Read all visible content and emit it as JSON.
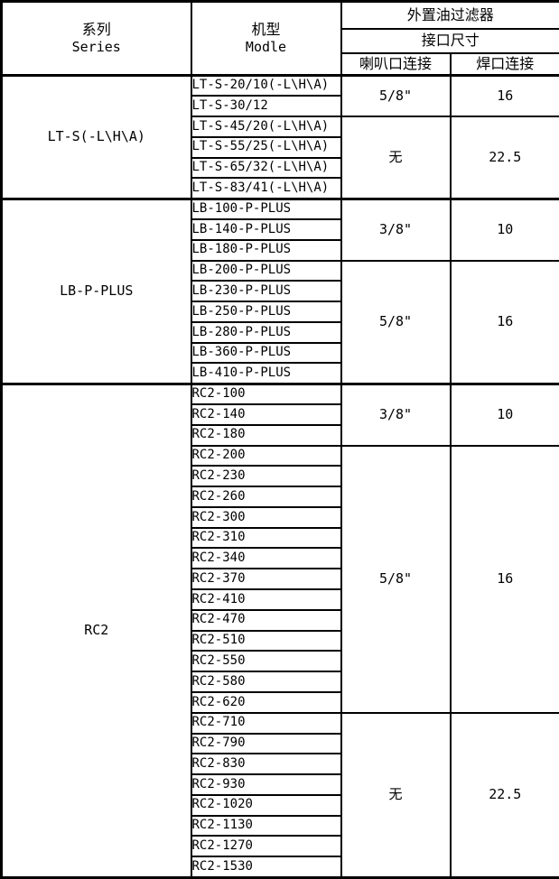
{
  "table": {
    "header": {
      "series_zh": "系列",
      "series_en": "Series",
      "model_zh": "机型",
      "model_en": "Modle",
      "filter_title": "外置油过滤器",
      "size_title": "接口尺寸",
      "flare_label": "喇叭口连接",
      "weld_label": "焊口连接"
    },
    "sections": [
      {
        "series": "LT-S(-L\\H\\A)",
        "groups": [
          {
            "flare": "5/8\"",
            "weld": "16",
            "models": [
              "LT-S-20/10(-L\\H\\A)",
              "LT-S-30/12"
            ]
          },
          {
            "flare": "无",
            "weld": "22.5",
            "models": [
              "LT-S-45/20(-L\\H\\A)",
              "LT-S-55/25(-L\\H\\A)",
              "LT-S-65/32(-L\\H\\A)",
              "LT-S-83/41(-L\\H\\A)"
            ]
          }
        ]
      },
      {
        "series": "LB-P-PLUS",
        "groups": [
          {
            "flare": "3/8\"",
            "weld": "10",
            "models": [
              "LB-100-P-PLUS",
              "LB-140-P-PLUS",
              "LB-180-P-PLUS"
            ]
          },
          {
            "flare": "5/8\"",
            "weld": "16",
            "models": [
              "LB-200-P-PLUS",
              "LB-230-P-PLUS",
              "LB-250-P-PLUS",
              "LB-280-P-PLUS",
              "LB-360-P-PLUS",
              "LB-410-P-PLUS"
            ]
          }
        ]
      },
      {
        "series": "RC2",
        "groups": [
          {
            "flare": "3/8\"",
            "weld": "10",
            "models": [
              "RC2-100",
              "RC2-140",
              "RC2-180"
            ]
          },
          {
            "flare": "5/8\"",
            "weld": "16",
            "models": [
              "RC2-200",
              "RC2-230",
              "RC2-260",
              "RC2-300",
              "RC2-310",
              "RC2-340",
              "RC2-370",
              "RC2-410",
              "RC2-470",
              "RC2-510",
              "RC2-550",
              "RC2-580",
              "RC2-620"
            ]
          },
          {
            "flare": "无",
            "weld": "22.5",
            "models": [
              "RC2-710",
              "RC2-790",
              "RC2-830",
              "RC2-930",
              "RC2-1020",
              "RC2-1130",
              "RC2-1270",
              "RC2-1530"
            ]
          }
        ]
      }
    ]
  },
  "colors": {
    "border": "#000000",
    "text": "#000000",
    "background": "#ffffff"
  }
}
